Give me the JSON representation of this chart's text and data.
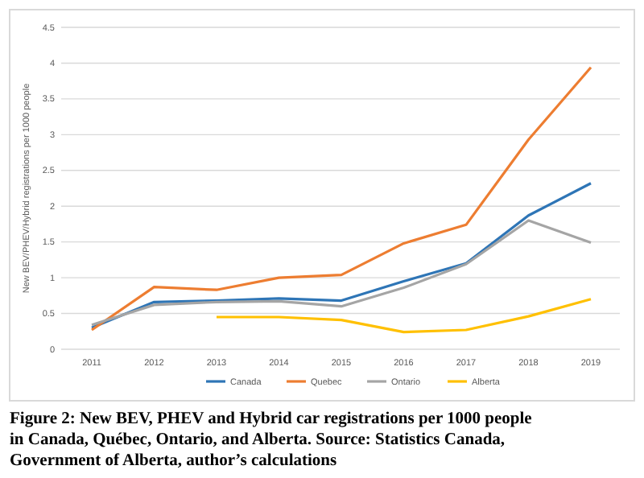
{
  "chart_data": {
    "type": "line",
    "ylabel": "New BEV/PHEV/Hybrid registrations per 1000 people",
    "categories": [
      "2011",
      "2012",
      "2013",
      "2014",
      "2015",
      "2016",
      "2017",
      "2018",
      "2019"
    ],
    "series": [
      {
        "name": "Canada",
        "color": "#2e75b6",
        "values": [
          0.3,
          0.66,
          0.68,
          0.71,
          0.68,
          0.95,
          1.2,
          1.87,
          2.32
        ]
      },
      {
        "name": "Quebec",
        "color": "#ed7d31",
        "values": [
          0.27,
          0.87,
          0.83,
          1.0,
          1.04,
          1.48,
          1.74,
          2.93,
          3.94
        ]
      },
      {
        "name": "Ontario",
        "color": "#a5a5a5",
        "values": [
          0.34,
          0.62,
          0.66,
          0.67,
          0.6,
          0.86,
          1.19,
          1.8,
          1.49
        ]
      },
      {
        "name": "Alberta",
        "color": "#ffc000",
        "values": [
          null,
          null,
          0.45,
          0.45,
          0.41,
          0.24,
          0.27,
          0.46,
          0.7
        ]
      }
    ],
    "ylim": [
      0,
      4.5
    ],
    "yticks": [
      0,
      0.5,
      1,
      1.5,
      2,
      2.5,
      3,
      3.5,
      4,
      4.5
    ],
    "grid": "y",
    "legend": "bottom",
    "marker": "none",
    "line_style": "solid",
    "annotations": [
      "Figure 2: New BEV, PHEV and Hybrid car registrations per 1000 people in Canada, Québec, Ontario, and Alberta. Source: Statistics Canada, Government of Alberta, author’s calculations"
    ]
  }
}
